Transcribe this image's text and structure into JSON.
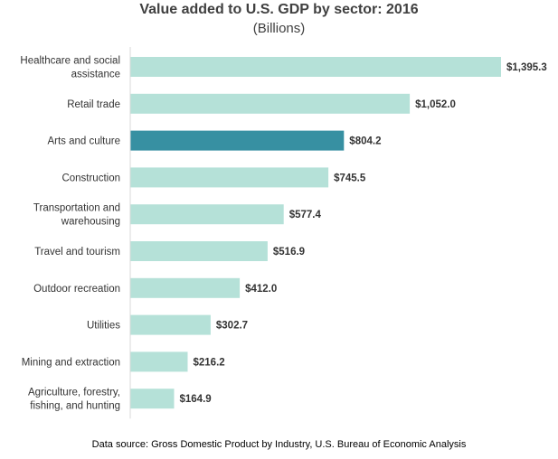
{
  "chart_data": {
    "type": "bar",
    "orientation": "horizontal",
    "title": "Value added to U.S. GDP by sector: 2016",
    "subtitle": "(Billions)",
    "source": "Data source: Gross Domestic Product by Industry, U.S. Bureau of Economic Analysis",
    "categories": [
      [
        "Healthcare and social",
        "assistance"
      ],
      [
        "Retail trade"
      ],
      [
        "Arts and culture"
      ],
      [
        "Construction"
      ],
      [
        "Transportation and",
        "warehousing"
      ],
      [
        "Travel and tourism"
      ],
      [
        "Outdoor recreation"
      ],
      [
        "Utilities"
      ],
      [
        "Mining and extraction"
      ],
      [
        "Agriculture, forestry,",
        "fishing, and hunting"
      ]
    ],
    "values": [
      1395.3,
      1052.0,
      804.2,
      745.5,
      577.4,
      516.9,
      412.0,
      302.7,
      216.2,
      164.9
    ],
    "value_labels": [
      "$1,395.3",
      "$1,052.0",
      "$804.2",
      "$745.5",
      "$577.4",
      "$516.9",
      "$412.0",
      "$302.7",
      "$216.2",
      "$164.9"
    ],
    "highlight_index": 2,
    "xlim": [
      0,
      1395.3
    ],
    "grid": false,
    "legend": "none",
    "colors": {
      "bar": "#b5e1d8",
      "highlight": "#3790a2",
      "axis": "#d9d9d9",
      "text": "#333333"
    }
  }
}
